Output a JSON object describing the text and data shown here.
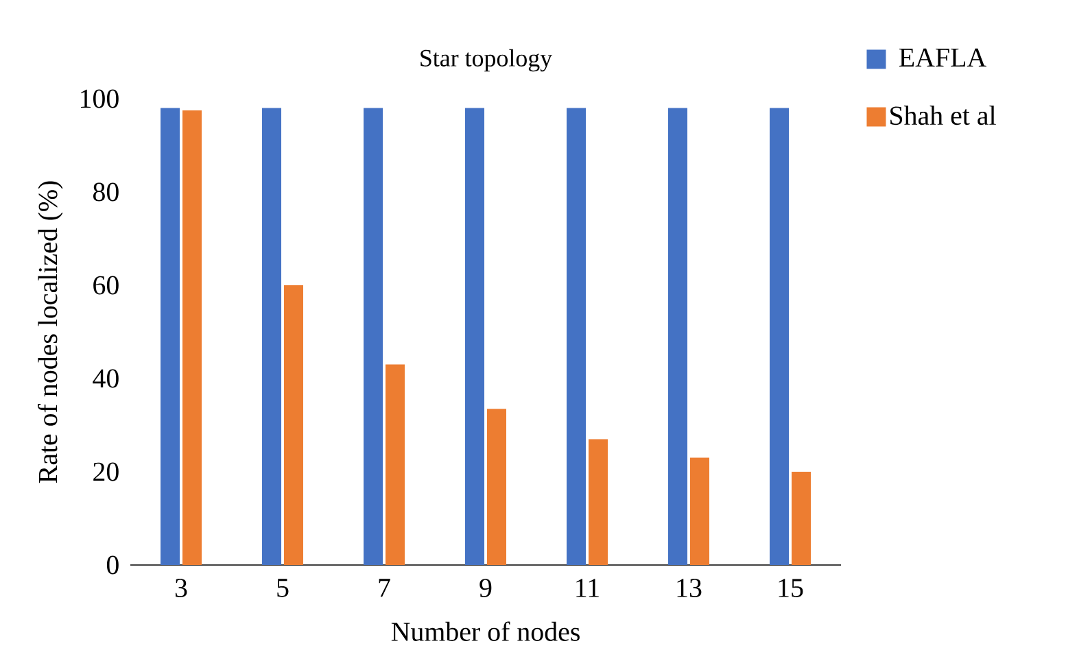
{
  "chart_data": {
    "type": "bar",
    "title": "Star topology",
    "xlabel": "Number of nodes",
    "ylabel": "Rate of nodes localized (%)",
    "categories": [
      "3",
      "5",
      "7",
      "9",
      "11",
      "13",
      "15"
    ],
    "series": [
      {
        "name": "EAFLA",
        "color": "#4472c4",
        "values": [
          98,
          98,
          98,
          98,
          98,
          98,
          98
        ]
      },
      {
        "name": "Shah et al",
        "color": "#ed7d31",
        "values": [
          97.5,
          60,
          43,
          33.5,
          27,
          23,
          20
        ]
      }
    ],
    "ylim": [
      0,
      100
    ],
    "yticks": [
      0,
      20,
      40,
      60,
      80,
      100
    ],
    "grid": false,
    "legend": "top right"
  }
}
